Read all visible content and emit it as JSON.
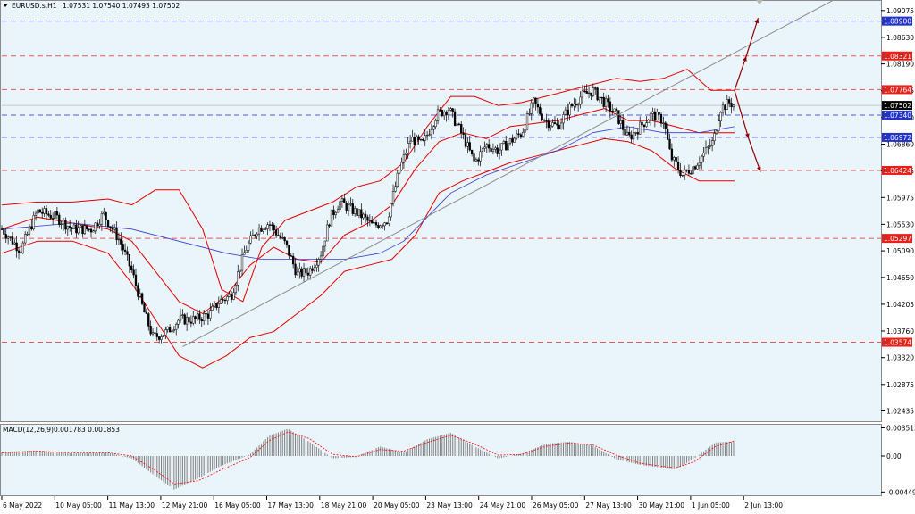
{
  "header": {
    "symbol": "EURUSD.s,H1",
    "ohlc": "1.07531 1.07540 1.07493 1.07502"
  },
  "macd_label": {
    "name": "MACD(12,26,9)",
    "values": "0.001783 0.001853"
  },
  "colors": {
    "background": "#eaf4fb",
    "bollinger": "#e00000",
    "moving_average": "#3a3ad0",
    "trendline": "#8c8c8c",
    "resistance": "#e05a5a",
    "support": "#5a5ad0",
    "arrow": "#8b0000",
    "candle": "#000000",
    "macd_histogram": "#808080",
    "macd_signal": "#ff0000"
  },
  "chart_data": [
    {
      "type": "candlestick",
      "pane": "price",
      "y_axis_ticks": [
        "1.09075",
        "1.08630",
        "1.08190",
        "1.07745",
        "1.07300",
        "1.06860",
        "1.06415",
        "1.05975",
        "1.05530",
        "1.05090",
        "1.04650",
        "1.04205",
        "1.03760",
        "1.03320",
        "1.02875",
        "1.02435"
      ],
      "ylim": [
        1.02265,
        1.09235
      ],
      "x_labels": [
        "6 May 2022",
        "10 May 05:00",
        "11 May 13:00",
        "12 May 21:00",
        "16 May 05:00",
        "17 May 13:00",
        "18 May 21:00",
        "20 May 05:00",
        "23 May 13:00",
        "24 May 21:00",
        "26 May 05:00",
        "27 May 13:00",
        "30 May 21:00",
        "1 Jun 05:00",
        "2 Jun 13:00"
      ],
      "current_price": "1.07502",
      "levels": [
        {
          "label": "1.08900",
          "value": 1.089,
          "kind": "support"
        },
        {
          "label": "1.08321",
          "value": 1.08321,
          "kind": "resistance"
        },
        {
          "label": "1.07764",
          "value": 1.07764,
          "kind": "resistance"
        },
        {
          "label": "1.07340",
          "value": 1.0734,
          "kind": "support"
        },
        {
          "label": "1.06972",
          "value": 1.06972,
          "kind": "support"
        },
        {
          "label": "1.06424",
          "value": 1.06424,
          "kind": "resistance"
        },
        {
          "label": "1.05297",
          "value": 1.05297,
          "kind": "resistance"
        },
        {
          "label": "1.03574",
          "value": 1.03574,
          "kind": "resistance"
        }
      ],
      "trendline": {
        "from": [
          7.65,
          1.035
        ],
        "to": [
          35.2,
          1.0925
        ]
      },
      "arrows": [
        {
          "from": [
            31.0,
            1.0775
          ],
          "to": [
            31.5,
            1.0832
          ]
        },
        {
          "from": [
            31.5,
            1.0832
          ],
          "to": [
            32.0,
            1.0895
          ]
        },
        {
          "from": [
            31.0,
            1.0775
          ],
          "to": [
            31.6,
            1.0695
          ]
        },
        {
          "from": [
            31.6,
            1.0695
          ],
          "to": [
            32.1,
            1.064
          ]
        }
      ],
      "path": [
        [
          0.0,
          1.0545
        ],
        [
          0.8,
          1.051
        ],
        [
          1.5,
          1.0575
        ],
        [
          2.3,
          1.0565
        ],
        [
          3.0,
          1.0545
        ],
        [
          3.8,
          1.0545
        ],
        [
          4.3,
          1.057
        ],
        [
          5.0,
          1.0525
        ],
        [
          5.5,
          1.0475
        ],
        [
          6.0,
          1.041
        ],
        [
          6.4,
          1.0365
        ],
        [
          7.0,
          1.0375
        ],
        [
          7.5,
          1.0395
        ],
        [
          8.2,
          1.0395
        ],
        [
          8.8,
          1.0405
        ],
        [
          9.2,
          1.0425
        ],
        [
          9.7,
          1.0435
        ],
        [
          10.3,
          1.051
        ],
        [
          10.8,
          1.0545
        ],
        [
          11.3,
          1.0555
        ],
        [
          12.0,
          1.052
        ],
        [
          12.5,
          1.047
        ],
        [
          13.0,
          1.0475
        ],
        [
          13.5,
          1.0505
        ],
        [
          13.9,
          1.0565
        ],
        [
          14.3,
          1.059
        ],
        [
          14.9,
          1.0575
        ],
        [
          15.3,
          1.0565
        ],
        [
          15.7,
          1.055
        ],
        [
          16.3,
          1.056
        ],
        [
          16.8,
          1.064
        ],
        [
          17.3,
          1.0695
        ],
        [
          17.8,
          1.0685
        ],
        [
          18.4,
          1.0735
        ],
        [
          18.9,
          1.0745
        ],
        [
          19.5,
          1.07
        ],
        [
          20.0,
          1.0655
        ],
        [
          20.5,
          1.0685
        ],
        [
          21.0,
          1.0675
        ],
        [
          21.5,
          1.069
        ],
        [
          22.0,
          1.0705
        ],
        [
          22.5,
          1.0755
        ],
        [
          23.0,
          1.0725
        ],
        [
          23.5,
          1.0715
        ],
        [
          24.0,
          1.0745
        ],
        [
          24.5,
          1.0765
        ],
        [
          25.0,
          1.0775
        ],
        [
          25.5,
          1.0755
        ],
        [
          26.0,
          1.0735
        ],
        [
          26.5,
          1.0695
        ],
        [
          27.0,
          1.0715
        ],
        [
          27.5,
          1.0735
        ],
        [
          28.0,
          1.0725
        ],
        [
          28.3,
          1.0665
        ],
        [
          28.8,
          1.0635
        ],
        [
          29.3,
          1.065
        ],
        [
          29.8,
          1.0675
        ],
        [
          30.1,
          1.069
        ],
        [
          30.4,
          1.0745
        ],
        [
          30.8,
          1.0755
        ],
        [
          31.0,
          1.075
        ]
      ],
      "bollinger_upper": [
        [
          0.0,
          1.0585
        ],
        [
          1.5,
          1.059
        ],
        [
          3.0,
          1.059
        ],
        [
          4.5,
          1.0595
        ],
        [
          5.5,
          1.0585
        ],
        [
          6.5,
          1.061
        ],
        [
          7.5,
          1.061
        ],
        [
          8.5,
          1.0545
        ],
        [
          9.3,
          1.0445
        ],
        [
          10.2,
          1.0425
        ],
        [
          11.0,
          1.0515
        ],
        [
          12.0,
          1.056
        ],
        [
          13.0,
          1.0575
        ],
        [
          14.0,
          1.059
        ],
        [
          15.0,
          1.0615
        ],
        [
          16.0,
          1.0625
        ],
        [
          17.0,
          1.0655
        ],
        [
          18.0,
          1.0715
        ],
        [
          19.0,
          1.0765
        ],
        [
          20.0,
          1.0765
        ],
        [
          21.0,
          1.075
        ],
        [
          22.0,
          1.0755
        ],
        [
          23.0,
          1.0765
        ],
        [
          24.0,
          1.0775
        ],
        [
          25.0,
          1.0785
        ],
        [
          26.0,
          1.0795
        ],
        [
          27.0,
          1.079
        ],
        [
          28.0,
          1.0795
        ],
        [
          29.0,
          1.081
        ],
        [
          30.0,
          1.0775
        ],
        [
          31.0,
          1.0775
        ]
      ],
      "bollinger_middle": [
        [
          0.0,
          1.0545
        ],
        [
          1.5,
          1.0565
        ],
        [
          3.0,
          1.0555
        ],
        [
          4.5,
          1.0545
        ],
        [
          5.5,
          1.0525
        ],
        [
          6.5,
          1.0475
        ],
        [
          7.5,
          1.0425
        ],
        [
          8.5,
          1.0405
        ],
        [
          9.5,
          1.0435
        ],
        [
          10.5,
          1.0485
        ],
        [
          11.5,
          1.0515
        ],
        [
          12.5,
          1.0495
        ],
        [
          13.5,
          1.049
        ],
        [
          14.5,
          1.0535
        ],
        [
          15.5,
          1.0555
        ],
        [
          16.5,
          1.0585
        ],
        [
          17.5,
          1.0645
        ],
        [
          18.5,
          1.069
        ],
        [
          19.5,
          1.0705
        ],
        [
          20.5,
          1.0695
        ],
        [
          21.5,
          1.0715
        ],
        [
          22.5,
          1.072
        ],
        [
          23.5,
          1.0725
        ],
        [
          24.5,
          1.0735
        ],
        [
          25.5,
          1.0745
        ],
        [
          26.5,
          1.0725
        ],
        [
          27.5,
          1.0725
        ],
        [
          28.5,
          1.0715
        ],
        [
          29.5,
          1.0705
        ],
        [
          31.0,
          1.0705
        ]
      ],
      "bollinger_lower": [
        [
          0.0,
          1.0505
        ],
        [
          1.5,
          1.0525
        ],
        [
          3.0,
          1.0525
        ],
        [
          4.5,
          1.0505
        ],
        [
          5.5,
          1.0455
        ],
        [
          6.5,
          1.0395
        ],
        [
          7.5,
          1.0335
        ],
        [
          8.5,
          1.0315
        ],
        [
          9.5,
          1.0335
        ],
        [
          10.5,
          1.0365
        ],
        [
          11.5,
          1.0375
        ],
        [
          12.5,
          1.0405
        ],
        [
          13.5,
          1.0435
        ],
        [
          14.5,
          1.0475
        ],
        [
          15.5,
          1.0485
        ],
        [
          16.5,
          1.0495
        ],
        [
          17.5,
          1.0535
        ],
        [
          18.5,
          1.0605
        ],
        [
          19.5,
          1.0625
        ],
        [
          20.5,
          1.064
        ],
        [
          21.5,
          1.0655
        ],
        [
          22.5,
          1.0665
        ],
        [
          23.5,
          1.0675
        ],
        [
          24.5,
          1.0685
        ],
        [
          25.5,
          1.0695
        ],
        [
          26.5,
          1.069
        ],
        [
          27.5,
          1.0675
        ],
        [
          28.5,
          1.0645
        ],
        [
          29.5,
          1.0625
        ],
        [
          31.0,
          1.0625
        ]
      ],
      "moving_average": [
        [
          0.0,
          1.0545
        ],
        [
          3.0,
          1.0555
        ],
        [
          5.5,
          1.0545
        ],
        [
          7.5,
          1.0525
        ],
        [
          9.5,
          1.0505
        ],
        [
          11.0,
          1.0495
        ],
        [
          12.5,
          1.0495
        ],
        [
          14.5,
          1.0495
        ],
        [
          16.0,
          1.0505
        ],
        [
          17.0,
          1.0525
        ],
        [
          18.0,
          1.0565
        ],
        [
          19.0,
          1.0605
        ],
        [
          20.5,
          1.0635
        ],
        [
          22.0,
          1.0655
        ],
        [
          23.5,
          1.0675
        ],
        [
          25.0,
          1.0705
        ],
        [
          26.5,
          1.0715
        ],
        [
          28.0,
          1.0705
        ],
        [
          29.5,
          1.0705
        ],
        [
          31.0,
          1.0715
        ]
      ]
    },
    {
      "type": "bar",
      "pane": "macd",
      "y_axis_ticks": [
        "0.003513",
        "0.00",
        "-0.004493"
      ],
      "ylim": [
        -0.0049,
        0.0039
      ],
      "histogram": [
        [
          0.0,
          0.0005
        ],
        [
          1.5,
          0.0007
        ],
        [
          3.0,
          0.0003
        ],
        [
          4.5,
          0.0004
        ],
        [
          5.5,
          -0.0003
        ],
        [
          6.5,
          -0.0025
        ],
        [
          7.3,
          -0.0042
        ],
        [
          8.3,
          -0.0028
        ],
        [
          9.3,
          -0.0012
        ],
        [
          10.5,
          0.0002
        ],
        [
          11.3,
          0.0025
        ],
        [
          12.1,
          0.0034
        ],
        [
          13.0,
          0.0018
        ],
        [
          14.0,
          -0.0003
        ],
        [
          15.0,
          -0.0001
        ],
        [
          16.0,
          0.0012
        ],
        [
          17.0,
          0.0004
        ],
        [
          18.0,
          0.0021
        ],
        [
          19.0,
          0.0029
        ],
        [
          20.0,
          0.0012
        ],
        [
          21.0,
          -0.0003
        ],
        [
          22.0,
          0.0003
        ],
        [
          23.0,
          0.0015
        ],
        [
          24.0,
          0.0018
        ],
        [
          25.0,
          0.0013
        ],
        [
          26.0,
          -0.0004
        ],
        [
          27.0,
          -0.0011
        ],
        [
          28.5,
          -0.0017
        ],
        [
          29.3,
          -0.0003
        ],
        [
          30.2,
          0.0017
        ],
        [
          31.0,
          0.0018
        ]
      ],
      "signal": [
        [
          0.0,
          0.0004
        ],
        [
          1.5,
          0.0006
        ],
        [
          3.0,
          0.0004
        ],
        [
          4.5,
          0.0004
        ],
        [
          5.5,
          0.0
        ],
        [
          6.5,
          -0.0018
        ],
        [
          7.3,
          -0.0035
        ],
        [
          8.3,
          -0.0031
        ],
        [
          9.3,
          -0.0017
        ],
        [
          10.5,
          -0.0002
        ],
        [
          11.3,
          0.0019
        ],
        [
          12.1,
          0.003
        ],
        [
          13.0,
          0.0022
        ],
        [
          14.0,
          0.0002
        ],
        [
          15.0,
          -0.0001
        ],
        [
          16.0,
          0.0008
        ],
        [
          17.0,
          0.0006
        ],
        [
          18.0,
          0.0017
        ],
        [
          19.0,
          0.0026
        ],
        [
          20.0,
          0.0015
        ],
        [
          21.0,
          0.0001
        ],
        [
          22.0,
          0.0002
        ],
        [
          23.0,
          0.0012
        ],
        [
          24.0,
          0.0016
        ],
        [
          25.0,
          0.0014
        ],
        [
          26.0,
          0.0001
        ],
        [
          27.0,
          -0.0009
        ],
        [
          28.5,
          -0.0015
        ],
        [
          29.3,
          -0.0007
        ],
        [
          30.2,
          0.0012
        ],
        [
          31.0,
          0.0019
        ]
      ]
    }
  ]
}
